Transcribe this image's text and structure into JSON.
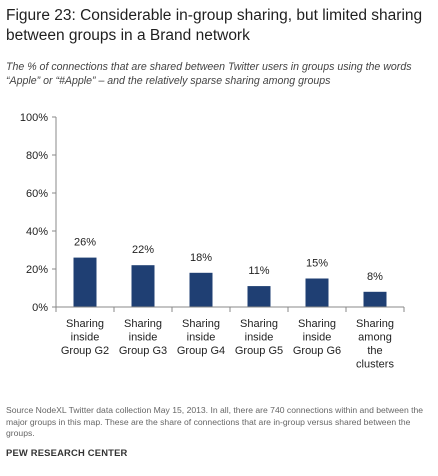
{
  "title": "Figure 23: Considerable in-group sharing, but limited sharing between groups in a Brand network",
  "subtitle": "The % of connections that are shared between Twitter users in groups using the words “Apple” or “#Apple” – and the relatively sparse sharing among groups",
  "footer": {
    "source": "Source NodeXL Twitter data collection May 15, 2013. In all, there are 740 connections within and between the major groups in this map. These are the share of connections that are in-group versus shared between the groups.",
    "brand": "PEW RESEARCH CENTER"
  },
  "colors": {
    "bar": "#1f3f73",
    "axis": "#888888",
    "text": "#222222"
  },
  "chart_data": {
    "type": "bar",
    "categories": [
      [
        "Sharing",
        "inside",
        "Group G2"
      ],
      [
        "Sharing",
        "inside",
        "Group G3"
      ],
      [
        "Sharing",
        "inside",
        "Group G4"
      ],
      [
        "Sharing",
        "inside",
        "Group G5"
      ],
      [
        "Sharing",
        "inside",
        "Group G6"
      ],
      [
        "Sharing",
        "among",
        "the",
        "clusters"
      ]
    ],
    "values": [
      26,
      22,
      18,
      11,
      15,
      8
    ],
    "value_labels": [
      "26%",
      "22%",
      "18%",
      "11%",
      "15%",
      "8%"
    ],
    "yticks": [
      0,
      20,
      40,
      60,
      80,
      100
    ],
    "ytick_labels": [
      "0%",
      "20%",
      "40%",
      "60%",
      "80%",
      "100%"
    ],
    "ylim": [
      0,
      100
    ],
    "grid": false
  }
}
